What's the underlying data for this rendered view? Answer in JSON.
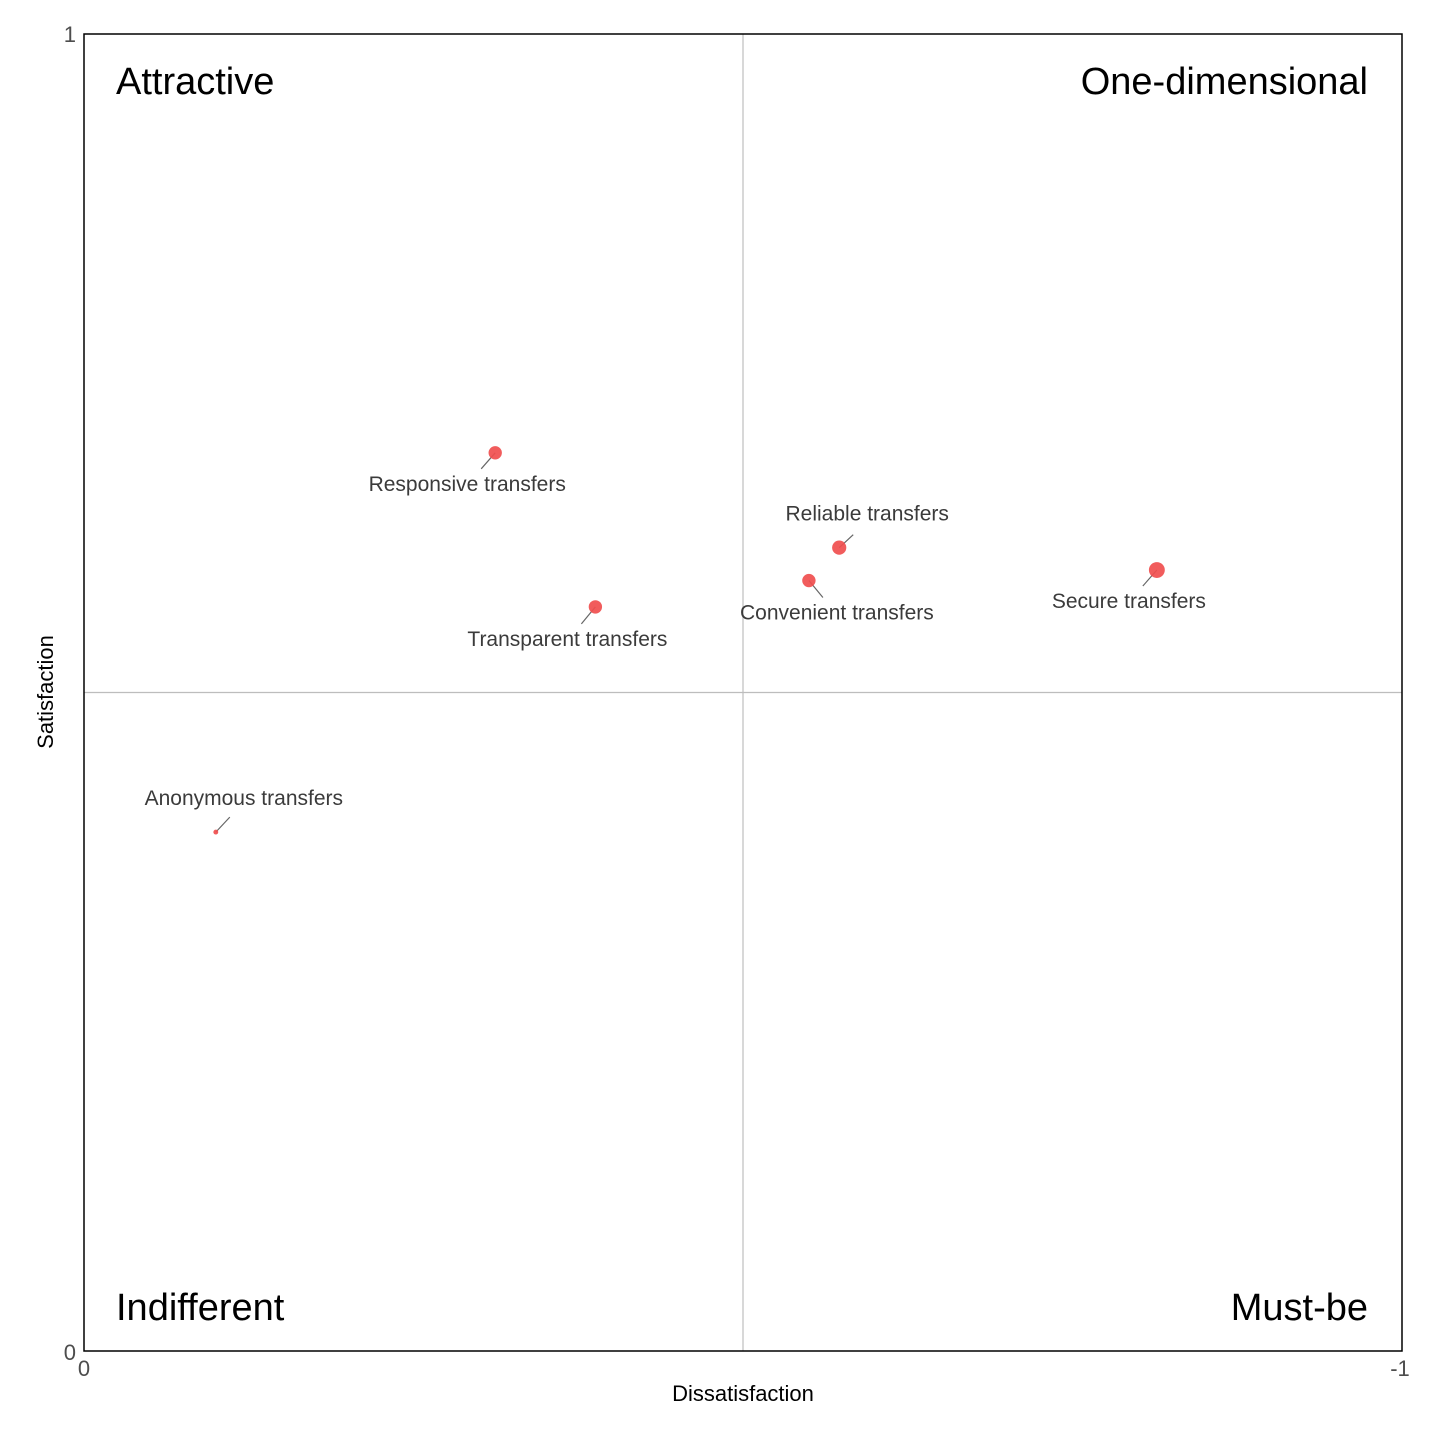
{
  "chart_data": {
    "type": "scatter",
    "xlabel": "Dissatisfaction",
    "ylabel": "Satisfaction",
    "xlim": [
      0,
      -1
    ],
    "ylim": [
      0,
      1
    ],
    "x_ticks": [
      "0",
      "-1"
    ],
    "y_ticks": [
      "0",
      "1"
    ],
    "reference_lines": {
      "x": -0.5,
      "y": 0.5
    },
    "quadrants": {
      "top_left": "Attractive",
      "top_right": "One-dimensional",
      "bottom_left": "Indifferent",
      "bottom_right": "Must-be"
    },
    "point_color": "#F04E4E",
    "points": [
      {
        "label": "Responsive transfers",
        "x": -0.312,
        "y": 0.682,
        "size": 0.55
      },
      {
        "label": "Reliable transfers",
        "x": -0.573,
        "y": 0.61,
        "size": 0.6
      },
      {
        "label": "Secure transfers",
        "x": -0.814,
        "y": 0.593,
        "size": 0.7
      },
      {
        "label": "Convenient transfers",
        "x": -0.55,
        "y": 0.585,
        "size": 0.55
      },
      {
        "label": "Transparent transfers",
        "x": -0.388,
        "y": 0.565,
        "size": 0.55
      },
      {
        "label": "Anonymous transfers",
        "x": -0.1,
        "y": 0.394,
        "size": 0.05
      }
    ]
  }
}
